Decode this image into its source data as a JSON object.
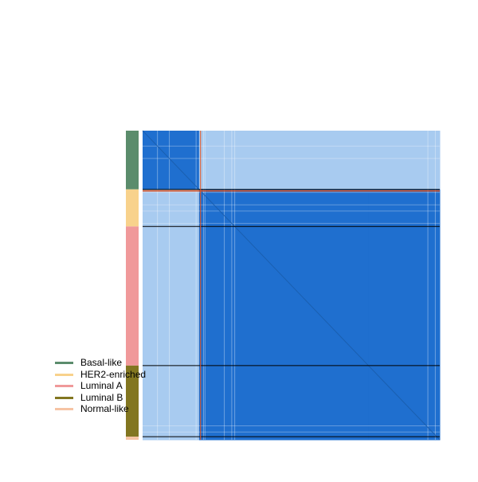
{
  "chart_data": {
    "type": "heatmap",
    "title": "",
    "xlabel": "",
    "ylabel": "",
    "colors": {
      "high": "#1f6fcf",
      "low": "#a8cbf0",
      "boundary": "#000000",
      "highlight": "#e8541e"
    },
    "groups": [
      {
        "name": "Basal-like",
        "fraction": 0.19,
        "color": "#5b8c6c"
      },
      {
        "name": "HER2-enriched",
        "fraction": 0.12,
        "color": "#f8d28c"
      },
      {
        "name": "Luminal A",
        "fraction": 0.45,
        "color": "#f0999a"
      },
      {
        "name": "Luminal B",
        "fraction": 0.23,
        "color": "#827620"
      },
      {
        "name": "Normal-like",
        "fraction": 0.01,
        "color": "#f6c4a4"
      }
    ],
    "blocks": [
      {
        "row_group": "Basal-like",
        "col_group": "Basal-like",
        "level": "high"
      },
      {
        "row_group": "Basal-like",
        "col_group": "HER2-enriched",
        "level": "low"
      },
      {
        "row_group": "Basal-like",
        "col_group": "Luminal A",
        "level": "low"
      },
      {
        "row_group": "Basal-like",
        "col_group": "Luminal B",
        "level": "low"
      },
      {
        "row_group": "Basal-like",
        "col_group": "Normal-like",
        "level": "low"
      },
      {
        "row_group": "HER2-enriched",
        "col_group": "Basal-like",
        "level": "low"
      },
      {
        "row_group": "HER2-enriched",
        "col_group": "HER2-enriched",
        "level": "high"
      },
      {
        "row_group": "HER2-enriched",
        "col_group": "Luminal A",
        "level": "high"
      },
      {
        "row_group": "HER2-enriched",
        "col_group": "Luminal B",
        "level": "high"
      },
      {
        "row_group": "HER2-enriched",
        "col_group": "Normal-like",
        "level": "high"
      },
      {
        "row_group": "Luminal A",
        "col_group": "Basal-like",
        "level": "low"
      },
      {
        "row_group": "Luminal A",
        "col_group": "HER2-enriched",
        "level": "high"
      },
      {
        "row_group": "Luminal A",
        "col_group": "Luminal A",
        "level": "high"
      },
      {
        "row_group": "Luminal A",
        "col_group": "Luminal B",
        "level": "high"
      },
      {
        "row_group": "Luminal A",
        "col_group": "Normal-like",
        "level": "high"
      },
      {
        "row_group": "Luminal B",
        "col_group": "Basal-like",
        "level": "low"
      },
      {
        "row_group": "Luminal B",
        "col_group": "HER2-enriched",
        "level": "high"
      },
      {
        "row_group": "Luminal B",
        "col_group": "Luminal A",
        "level": "high"
      },
      {
        "row_group": "Luminal B",
        "col_group": "Luminal B",
        "level": "high"
      },
      {
        "row_group": "Luminal B",
        "col_group": "Normal-like",
        "level": "high"
      },
      {
        "row_group": "Normal-like",
        "col_group": "Basal-like",
        "level": "low"
      },
      {
        "row_group": "Normal-like",
        "col_group": "HER2-enriched",
        "level": "high"
      },
      {
        "row_group": "Normal-like",
        "col_group": "Luminal A",
        "level": "high"
      },
      {
        "row_group": "Normal-like",
        "col_group": "Luminal B",
        "level": "high"
      },
      {
        "row_group": "Normal-like",
        "col_group": "Normal-like",
        "level": "high"
      }
    ],
    "cluster_boundaries": [
      0.19,
      0.31,
      0.76,
      0.99
    ],
    "highlight_line": 0.195,
    "legend": {
      "placement": "bottom-left",
      "items": [
        "Basal-like",
        "HER2-enriched",
        "Luminal A",
        "Luminal B",
        "Normal-like"
      ]
    }
  }
}
